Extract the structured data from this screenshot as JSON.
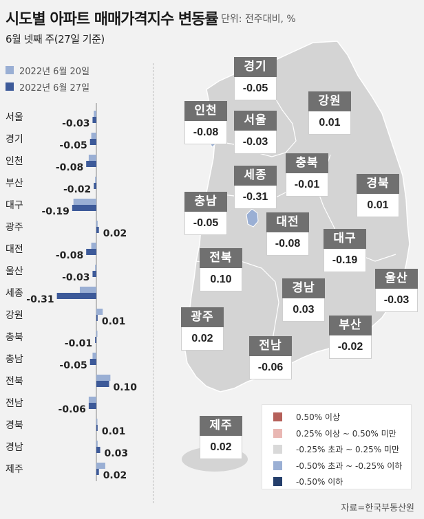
{
  "header": {
    "title": "시도별 아파트 매매가격지수 변동률",
    "unit": "단위: 전주대비, %",
    "subtitle": "6월 넷째 주(27일 기준)"
  },
  "legend": [
    {
      "label": "2022년 6월 20일",
      "color": "#9aafd4"
    },
    {
      "label": "2022년 6월 27일",
      "color": "#3d5a99"
    }
  ],
  "chart_data": {
    "type": "bar",
    "orientation": "horizontal",
    "categories": [
      "서울",
      "경기",
      "인천",
      "부산",
      "대구",
      "광주",
      "대전",
      "울산",
      "세종",
      "강원",
      "충북",
      "충남",
      "전북",
      "전남",
      "경북",
      "경남",
      "제주"
    ],
    "series": [
      {
        "name": "2022년 6월 20일",
        "values": [
          -0.02,
          -0.04,
          -0.06,
          -0.01,
          -0.18,
          0.01,
          -0.04,
          -0.01,
          -0.13,
          0.05,
          0.0,
          -0.03,
          0.11,
          -0.06,
          0.0,
          0.01,
          0.07
        ]
      },
      {
        "name": "2022년 6월 27일",
        "values": [
          -0.03,
          -0.05,
          -0.08,
          -0.02,
          -0.19,
          0.02,
          -0.08,
          -0.03,
          -0.31,
          0.01,
          -0.01,
          -0.05,
          0.1,
          -0.06,
          0.01,
          0.03,
          0.02
        ]
      }
    ],
    "data_labels": [
      "-0.03",
      "-0.05",
      "-0.08",
      "-0.02",
      "-0.19",
      "0.02",
      "-0.08",
      "-0.03",
      "-0.31",
      "0.01",
      "-0.01",
      "-0.05",
      "0.10",
      "-0.06",
      "0.01",
      "0.03",
      "0.02"
    ],
    "colors": {
      "prev": "#9aafd4",
      "curr": "#3d5a99"
    }
  },
  "map_tiles": [
    {
      "name": "경기",
      "value": "-0.05"
    },
    {
      "name": "강원",
      "value": "0.01"
    },
    {
      "name": "인천",
      "value": "-0.08"
    },
    {
      "name": "서울",
      "value": "-0.03"
    },
    {
      "name": "충북",
      "value": "-0.01"
    },
    {
      "name": "세종",
      "value": "-0.31"
    },
    {
      "name": "경북",
      "value": "0.01"
    },
    {
      "name": "충남",
      "value": "-0.05"
    },
    {
      "name": "대전",
      "value": "-0.08"
    },
    {
      "name": "대구",
      "value": "-0.19"
    },
    {
      "name": "전북",
      "value": "0.10"
    },
    {
      "name": "울산",
      "value": "-0.03"
    },
    {
      "name": "경남",
      "value": "0.03"
    },
    {
      "name": "광주",
      "value": "0.02"
    },
    {
      "name": "부산",
      "value": "-0.02"
    },
    {
      "name": "전남",
      "value": "-0.06"
    },
    {
      "name": "제주",
      "value": "0.02"
    }
  ],
  "map_legend": [
    {
      "label": "0.50% 이상",
      "color": "#b5605a"
    },
    {
      "label": "0.25% 이상 ~ 0.50% 미만",
      "color": "#e9b7b3"
    },
    {
      "label": "-0.25% 초과 ~ 0.25% 미만",
      "color": "#d9d9d9"
    },
    {
      "label": "-0.50% 초과 ~ -0.25% 이하",
      "color": "#9aafd4"
    },
    {
      "label": "-0.50% 이하",
      "color": "#243e6b"
    }
  ],
  "source": "자료=한국부동산원"
}
